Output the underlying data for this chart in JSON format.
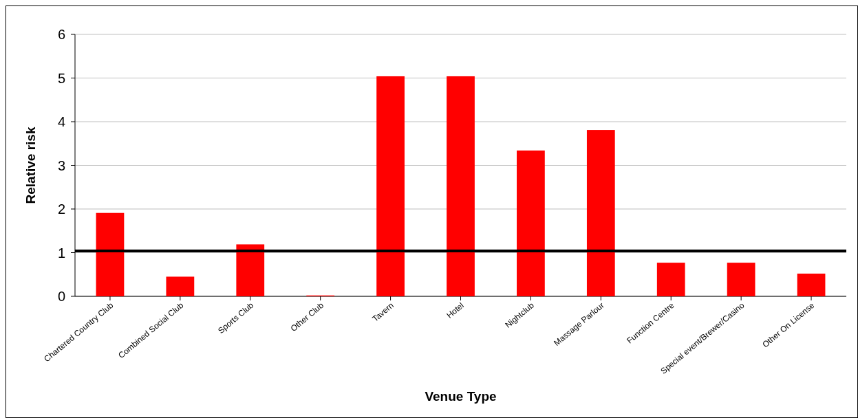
{
  "chart_data": {
    "type": "bar",
    "xlabel": "Venue Type",
    "ylabel": "Relative risk",
    "categories": [
      "Chartered Country Club",
      "Combined Social Club",
      "Sports Club",
      "Other Club",
      "Tavern",
      "Hotel",
      "Nightclub",
      "Massage Parlour",
      "Function Centre",
      "Special event/Brewer/Casino",
      "Other On License"
    ],
    "values": [
      1.91,
      0.45,
      1.19,
      0.02,
      5.04,
      5.04,
      3.34,
      3.81,
      0.77,
      0.77,
      0.52
    ],
    "color": "#ff0000",
    "ylim": [
      0,
      6
    ],
    "yticks": [
      0,
      1,
      2,
      3,
      4,
      5,
      6
    ],
    "grid": "y",
    "ref_lines": [
      {
        "axis": "y",
        "value": 1.04,
        "color": "#000000"
      }
    ]
  }
}
